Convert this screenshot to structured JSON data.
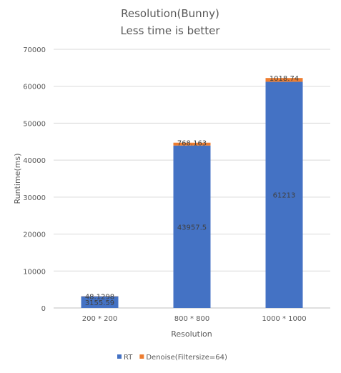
{
  "chart_data": {
    "type": "bar",
    "stacked": true,
    "title": [
      "Resolution(Bunny)",
      "Less time is better"
    ],
    "xlabel": "Resolution",
    "ylabel": "Runtime(ms)",
    "ylim": [
      0,
      70000
    ],
    "yticks": [
      0,
      10000,
      20000,
      30000,
      40000,
      50000,
      60000,
      70000
    ],
    "grid": true,
    "legend_position": "bottom",
    "categories": [
      "200 * 200",
      "800 * 800",
      "1000 * 1000"
    ],
    "series": [
      {
        "name": "RT",
        "color": "#4472C4",
        "values": [
          3155.59,
          43957.5,
          61213
        ],
        "labels": [
          "3155.59",
          "43957.5",
          "61213"
        ]
      },
      {
        "name": "Denoise(Filtersize=64)",
        "color": "#ED7D31",
        "values": [
          48.1298,
          768.163,
          1018.74
        ],
        "labels": [
          "48.1298",
          "768.163",
          "1018.74"
        ]
      }
    ]
  }
}
